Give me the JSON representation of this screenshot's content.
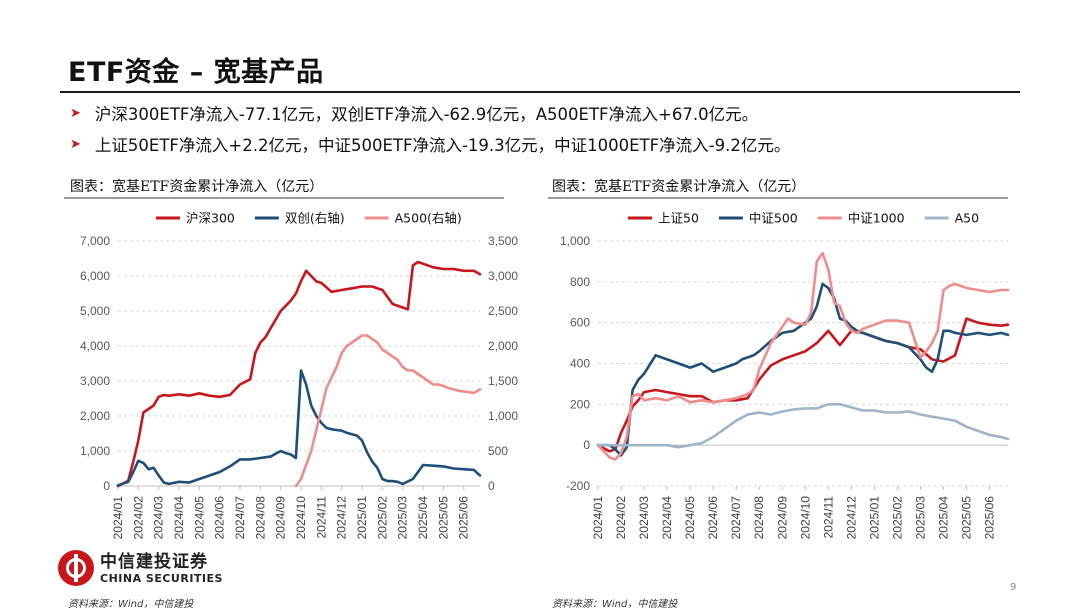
{
  "title": "ETF资金 – 宽基产品",
  "bullets": [
    "沪深300ETF净流入-77.1亿元，双创ETF净流入-62.9亿元，A500ETF净流入+67.0亿元。",
    "上证50ETF净流入+2.2亿元，中证500ETF净流入-19.3亿元，中证1000ETF净流入-9.2亿元。"
  ],
  "logo": {
    "cn": "中信建投证券",
    "en": "CHINA SECURITIES"
  },
  "source": "资料来源：Wind，中信建投",
  "page_number": "9",
  "colors": {
    "red": "#c8161d",
    "navy": "#1f4e79",
    "pink": "#f08c8c",
    "gray_blue": "#9fb4c7",
    "accent": "#c8161d"
  },
  "chart_data": [
    {
      "type": "line",
      "figure_title": "图表：宽基ETF资金累计净流入（亿元）",
      "x_labels": [
        "2024/01",
        "2024/02",
        "2024/03",
        "2024/04",
        "2024/05",
        "2024/06",
        "2024/07",
        "2024/08",
        "2024/09",
        "2024/10",
        "2024/11",
        "2024/12",
        "2025/01",
        "2025/02",
        "2025/03",
        "2025/04",
        "2025/05",
        "2025/06"
      ],
      "x_range": [
        0,
        17.8
      ],
      "ylim": [
        0,
        7000
      ],
      "yticks": [
        0,
        1000,
        2000,
        3000,
        4000,
        5000,
        6000,
        7000
      ],
      "y2lim": [
        0,
        3500
      ],
      "y2ticks": [
        0,
        500,
        1000,
        1500,
        2000,
        2500,
        3000,
        3500
      ],
      "legend_position": "top",
      "series": [
        {
          "name": "沪深300",
          "color": "#c8161d",
          "axis": "left",
          "x": [
            0,
            0.5,
            0.75,
            1,
            1.25,
            1.5,
            1.75,
            2,
            2.25,
            2.5,
            3,
            3.5,
            4,
            4.5,
            5,
            5.5,
            6,
            6.5,
            6.75,
            7,
            7.25,
            7.5,
            8,
            8.25,
            8.5,
            8.75,
            9,
            9.25,
            9.5,
            9.75,
            10,
            10.5,
            11,
            11.5,
            12,
            12.5,
            13,
            13.5,
            14,
            14.25,
            14.5,
            14.75,
            15,
            15.5,
            16,
            16.5,
            17,
            17.5,
            17.8
          ],
          "y": [
            0,
            150,
            700,
            1300,
            2100,
            2200,
            2300,
            2550,
            2600,
            2580,
            2620,
            2580,
            2650,
            2580,
            2550,
            2600,
            2900,
            3050,
            3800,
            4100,
            4250,
            4500,
            5000,
            5150,
            5300,
            5500,
            5850,
            6150,
            6000,
            5850,
            5800,
            5550,
            5600,
            5650,
            5700,
            5700,
            5600,
            5200,
            5100,
            5050,
            6300,
            6400,
            6350,
            6250,
            6200,
            6200,
            6150,
            6150,
            6050
          ]
        },
        {
          "name": "双创(右轴)",
          "color": "#1f4e79",
          "axis": "right",
          "x": [
            0,
            0.5,
            0.75,
            1,
            1.25,
            1.5,
            1.75,
            2,
            2.25,
            2.5,
            3,
            3.5,
            4,
            4.5,
            5,
            5.5,
            6,
            6.5,
            7,
            7.5,
            8,
            8.25,
            8.5,
            8.75,
            9,
            9.25,
            9.5,
            9.75,
            10,
            10.25,
            10.5,
            10.75,
            11,
            11.25,
            11.5,
            11.75,
            12,
            12.25,
            12.5,
            12.75,
            13,
            13.25,
            13.5,
            13.75,
            14,
            14.5,
            15,
            15.5,
            16,
            16.5,
            17,
            17.5,
            17.8
          ],
          "y": [
            10,
            60,
            200,
            360,
            330,
            240,
            260,
            150,
            50,
            30,
            60,
            50,
            100,
            150,
            200,
            280,
            380,
            380,
            400,
            420,
            500,
            470,
            450,
            400,
            1650,
            1450,
            1150,
            1000,
            900,
            830,
            810,
            800,
            790,
            760,
            740,
            720,
            650,
            480,
            350,
            260,
            100,
            70,
            70,
            60,
            30,
            100,
            300,
            290,
            280,
            250,
            240,
            230,
            150
          ]
        },
        {
          "name": "A500(右轴)",
          "color": "#f08c8c",
          "axis": "right",
          "x": [
            8.75,
            9,
            9.25,
            9.5,
            9.75,
            10,
            10.25,
            10.5,
            10.75,
            11,
            11.25,
            11.5,
            11.75,
            12,
            12.25,
            12.5,
            12.75,
            13,
            13.25,
            13.5,
            13.75,
            14,
            14.25,
            14.5,
            14.75,
            15,
            15.25,
            15.5,
            15.75,
            16,
            16.25,
            16.5,
            16.75,
            17,
            17.25,
            17.5,
            17.8
          ],
          "y": [
            0,
            100,
            300,
            500,
            800,
            1100,
            1400,
            1550,
            1700,
            1900,
            2000,
            2050,
            2100,
            2150,
            2150,
            2100,
            2050,
            1950,
            1900,
            1850,
            1800,
            1700,
            1650,
            1650,
            1600,
            1550,
            1500,
            1450,
            1450,
            1430,
            1400,
            1380,
            1360,
            1350,
            1340,
            1330,
            1380
          ]
        }
      ]
    },
    {
      "type": "line",
      "figure_title": "图表：宽基ETF资金累计净流入（亿元）",
      "x_labels": [
        "2024/01",
        "2024/02",
        "2024/03",
        "2024/04",
        "2024/05",
        "2024/06",
        "2024/07",
        "2024/08",
        "2024/09",
        "2024/10",
        "2024/11",
        "2024/12",
        "2025/01",
        "2025/02",
        "2025/03",
        "2025/04",
        "2025/05",
        "2025/06"
      ],
      "x_range": [
        0,
        17.8
      ],
      "ylim": [
        -200,
        1000
      ],
      "yticks": [
        -200,
        0,
        200,
        400,
        600,
        800,
        1000
      ],
      "legend_position": "top",
      "series": [
        {
          "name": "上证50",
          "color": "#c8161d",
          "x": [
            0,
            0.5,
            0.75,
            1,
            1.25,
            1.5,
            1.75,
            2,
            2.5,
            3,
            3.5,
            4,
            4.5,
            5,
            5.5,
            6,
            6.5,
            7,
            7.5,
            8,
            8.5,
            9,
            9.5,
            10,
            10.5,
            11,
            11.5,
            12,
            12.5,
            13,
            13.5,
            14,
            14.5,
            15,
            15.5,
            16,
            16.5,
            17,
            17.5,
            17.8
          ],
          "y": [
            0,
            -30,
            -20,
            60,
            120,
            190,
            220,
            260,
            270,
            260,
            250,
            240,
            240,
            210,
            220,
            220,
            230,
            320,
            390,
            420,
            440,
            460,
            500,
            560,
            490,
            560,
            550,
            530,
            510,
            500,
            480,
            470,
            420,
            410,
            440,
            620,
            600,
            590,
            585,
            590
          ]
        },
        {
          "name": "中证500",
          "color": "#1f4e79",
          "x": [
            0,
            0.5,
            0.75,
            1,
            1.25,
            1.5,
            1.75,
            2,
            2.5,
            3,
            3.5,
            4,
            4.5,
            5,
            5.5,
            6,
            6.25,
            6.5,
            6.75,
            7,
            7.5,
            8,
            8.5,
            9,
            9.25,
            9.5,
            9.75,
            10,
            10.25,
            10.5,
            10.75,
            11,
            11.25,
            11.5,
            11.75,
            12,
            12.5,
            13,
            13.5,
            14,
            14.25,
            14.5,
            14.75,
            15,
            15.25,
            15.5,
            16,
            16.5,
            17,
            17.5,
            17.8
          ],
          "y": [
            0,
            0,
            -20,
            -50,
            -10,
            270,
            320,
            350,
            440,
            420,
            400,
            380,
            400,
            360,
            380,
            400,
            420,
            430,
            440,
            460,
            510,
            550,
            560,
            600,
            620,
            680,
            790,
            770,
            720,
            620,
            610,
            580,
            560,
            550,
            540,
            530,
            510,
            500,
            480,
            420,
            380,
            360,
            420,
            560,
            560,
            550,
            540,
            550,
            540,
            550,
            540
          ]
        },
        {
          "name": "中证1000",
          "color": "#f08c8c",
          "x": [
            0,
            0.5,
            0.75,
            1,
            1.25,
            1.5,
            1.75,
            2,
            2.5,
            3,
            3.5,
            4,
            4.5,
            5,
            5.5,
            6,
            6.25,
            6.5,
            6.75,
            7,
            7.5,
            8,
            8.25,
            8.5,
            9,
            9.25,
            9.5,
            9.75,
            10,
            10.25,
            10.5,
            10.75,
            11,
            11.25,
            11.5,
            11.75,
            12,
            12.5,
            13,
            13.5,
            14,
            14.25,
            14.5,
            14.75,
            15,
            15.25,
            15.5,
            16,
            16.5,
            17,
            17.5,
            17.8
          ],
          "y": [
            0,
            -60,
            -70,
            -40,
            40,
            240,
            250,
            220,
            230,
            220,
            240,
            210,
            220,
            210,
            220,
            230,
            240,
            250,
            270,
            370,
            500,
            580,
            620,
            600,
            590,
            650,
            900,
            940,
            860,
            700,
            680,
            600,
            560,
            550,
            570,
            580,
            590,
            610,
            610,
            600,
            430,
            460,
            500,
            560,
            760,
            780,
            790,
            770,
            760,
            750,
            760,
            760
          ]
        },
        {
          "name": "A50",
          "color": "#9fb4c7",
          "x": [
            0,
            1,
            2,
            3,
            3.5,
            4,
            4.5,
            5,
            5.5,
            6,
            6.5,
            7,
            7.5,
            8,
            8.5,
            9,
            9.5,
            10,
            10.5,
            11,
            11.5,
            12,
            12.5,
            13,
            13.5,
            14,
            14.5,
            15,
            15.5,
            16,
            16.5,
            17,
            17.5,
            17.8
          ],
          "y": [
            0,
            0,
            0,
            0,
            -10,
            0,
            10,
            40,
            80,
            120,
            150,
            160,
            150,
            165,
            175,
            180,
            180,
            200,
            200,
            185,
            170,
            170,
            160,
            160,
            165,
            150,
            140,
            130,
            120,
            90,
            70,
            50,
            40,
            30
          ]
        }
      ]
    }
  ]
}
